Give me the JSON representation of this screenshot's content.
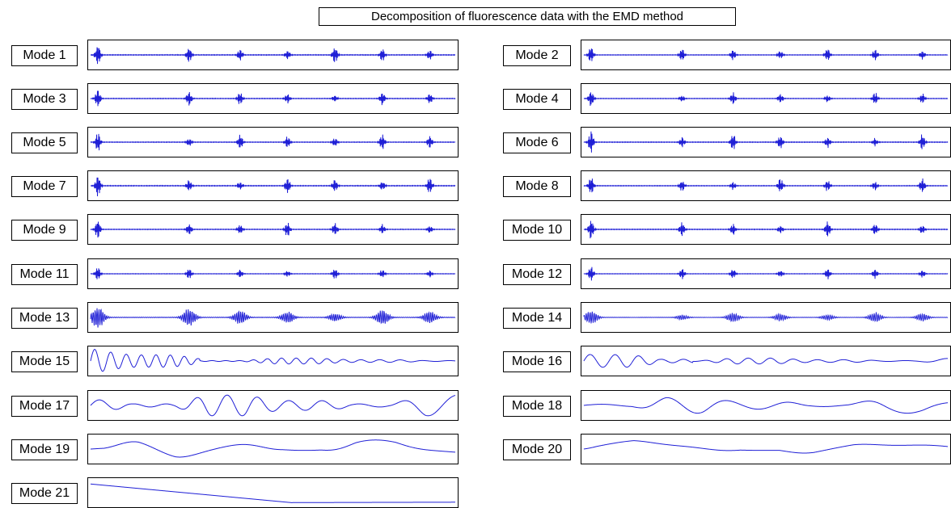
{
  "title": "Decomposition of fluorescence data with the EMD method",
  "chart_data": {
    "type": "line",
    "title": "Decomposition of fluorescence data with the EMD method",
    "xlabel": "",
    "ylabel": "",
    "grid": false,
    "axes_ticks": false,
    "line_color": "#1f1fd6",
    "modes": [
      {
        "label": "Mode 1",
        "pattern": "spikes",
        "amplitude": 0.9,
        "bursts": [
          0.02,
          0.27,
          0.41,
          0.54,
          0.67,
          0.8,
          0.93
        ]
      },
      {
        "label": "Mode 2",
        "pattern": "spikes",
        "amplitude": 0.7,
        "bursts": [
          0.02,
          0.27,
          0.41,
          0.54,
          0.67,
          0.8,
          0.93
        ]
      },
      {
        "label": "Mode 3",
        "pattern": "spikes",
        "amplitude": 0.8,
        "bursts": [
          0.02,
          0.27,
          0.41,
          0.54,
          0.67,
          0.8,
          0.93
        ]
      },
      {
        "label": "Mode 4",
        "pattern": "spikes",
        "amplitude": 0.7,
        "bursts": [
          0.02,
          0.27,
          0.41,
          0.54,
          0.67,
          0.8,
          0.93
        ]
      },
      {
        "label": "Mode 5",
        "pattern": "spikes",
        "amplitude": 0.8,
        "bursts": [
          0.02,
          0.27,
          0.41,
          0.54,
          0.67,
          0.8,
          0.93
        ]
      },
      {
        "label": "Mode 6",
        "pattern": "spikes",
        "amplitude": 0.9,
        "bursts": [
          0.02,
          0.27,
          0.41,
          0.54,
          0.67,
          0.8,
          0.93
        ]
      },
      {
        "label": "Mode 7",
        "pattern": "spikes",
        "amplitude": 0.95,
        "bursts": [
          0.02,
          0.27,
          0.41,
          0.54,
          0.67,
          0.8,
          0.93
        ]
      },
      {
        "label": "Mode 8",
        "pattern": "spikes",
        "amplitude": 0.8,
        "bursts": [
          0.02,
          0.27,
          0.41,
          0.54,
          0.67,
          0.8,
          0.93
        ]
      },
      {
        "label": "Mode 9",
        "pattern": "spikes",
        "amplitude": 0.8,
        "bursts": [
          0.02,
          0.27,
          0.41,
          0.54,
          0.67,
          0.8,
          0.93
        ]
      },
      {
        "label": "Mode 10",
        "pattern": "spikes",
        "amplitude": 0.9,
        "bursts": [
          0.02,
          0.27,
          0.41,
          0.54,
          0.67,
          0.8,
          0.93
        ]
      },
      {
        "label": "Mode 11",
        "pattern": "spikes",
        "amplitude": 0.6,
        "bursts": [
          0.02,
          0.27,
          0.41,
          0.54,
          0.67,
          0.8,
          0.93
        ]
      },
      {
        "label": "Mode 12",
        "pattern": "spikes",
        "amplitude": 0.6,
        "bursts": [
          0.02,
          0.27,
          0.41,
          0.54,
          0.67,
          0.8,
          0.93
        ]
      },
      {
        "label": "Mode 13",
        "pattern": "packets",
        "amplitude": 0.9,
        "bursts": [
          0.02,
          0.27,
          0.41,
          0.54,
          0.67,
          0.8,
          0.93
        ]
      },
      {
        "label": "Mode 14",
        "pattern": "packets",
        "amplitude": 0.55,
        "bursts": [
          0.02,
          0.27,
          0.41,
          0.54,
          0.67,
          0.8,
          0.93
        ]
      },
      {
        "label": "Mode 15",
        "pattern": "oscillation",
        "amplitude": 0.9,
        "cycles": 22
      },
      {
        "label": "Mode 16",
        "pattern": "oscillation",
        "amplitude": 0.9,
        "cycles": 14
      },
      {
        "label": "Mode 17",
        "pattern": "oscillation",
        "amplitude": 0.8,
        "cycles": 10
      },
      {
        "label": "Mode 18",
        "pattern": "oscillation",
        "amplitude": 0.6,
        "cycles": 5
      },
      {
        "label": "Mode 19",
        "pattern": "oscillation",
        "amplitude": 0.7,
        "cycles": 2.6
      },
      {
        "label": "Mode 20",
        "pattern": "oscillation",
        "amplitude": 0.7,
        "cycles": 1.3
      },
      {
        "label": "Mode 21",
        "pattern": "trend",
        "amplitude": 0.8
      }
    ]
  }
}
